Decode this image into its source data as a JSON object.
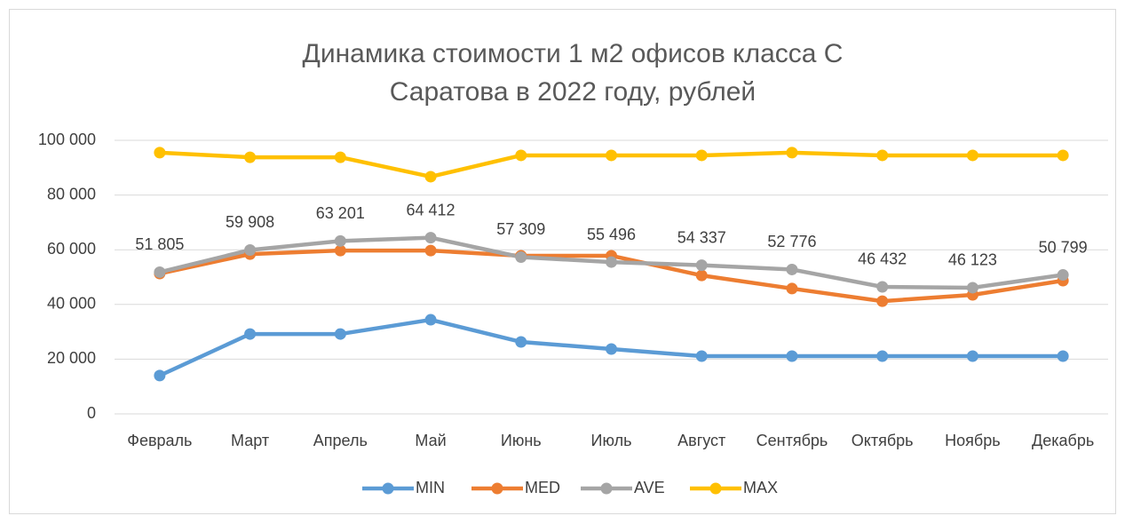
{
  "chart_data": {
    "type": "line",
    "title": [
      "Динамика стоимости 1 м2 офисов класса С",
      "Саратова в 2022 году, рублей"
    ],
    "categories": [
      "Февраль",
      "Март",
      "Апрель",
      "Май",
      "Июнь",
      "Июль",
      "Август",
      "Сентябрь",
      "Октябрь",
      "Ноябрь",
      "Декабрь"
    ],
    "series": [
      {
        "name": "MIN",
        "color": "#5b9bd5",
        "values": [
          14000,
          29200,
          29200,
          34400,
          26300,
          23700,
          21100,
          21100,
          21100,
          21100,
          21100
        ]
      },
      {
        "name": "MED",
        "color": "#ed7d31",
        "values": [
          51300,
          58400,
          59700,
          59700,
          57800,
          57800,
          50600,
          45800,
          41200,
          43500,
          48700
        ]
      },
      {
        "name": "AVE",
        "color": "#a5a5a5",
        "values": [
          51805,
          59908,
          63201,
          64412,
          57309,
          55496,
          54337,
          52776,
          46432,
          46123,
          50799
        ],
        "value_labels": [
          "51 805",
          "59 908",
          "63 201",
          "64 412",
          "57 309",
          "55 496",
          "54 337",
          "52 776",
          "46 432",
          "46 123",
          "50 799"
        ]
      },
      {
        "name": "MAX",
        "color": "#ffc000",
        "values": [
          95500,
          93800,
          93800,
          86700,
          94500,
          94500,
          94500,
          95500,
          94500,
          94500,
          94500
        ]
      }
    ],
    "ylim": [
      0,
      100000
    ],
    "yticks": [
      0,
      {
        "value": 20000,
        "label": "20 000"
      },
      {
        "value": 40000,
        "label": "40 000"
      },
      {
        "value": 60000,
        "label": "60 000"
      },
      {
        "value": 80000,
        "label": "80 000"
      },
      {
        "value": 100000,
        "label": "100 000"
      }
    ],
    "grid": true,
    "legend": "bottom"
  }
}
